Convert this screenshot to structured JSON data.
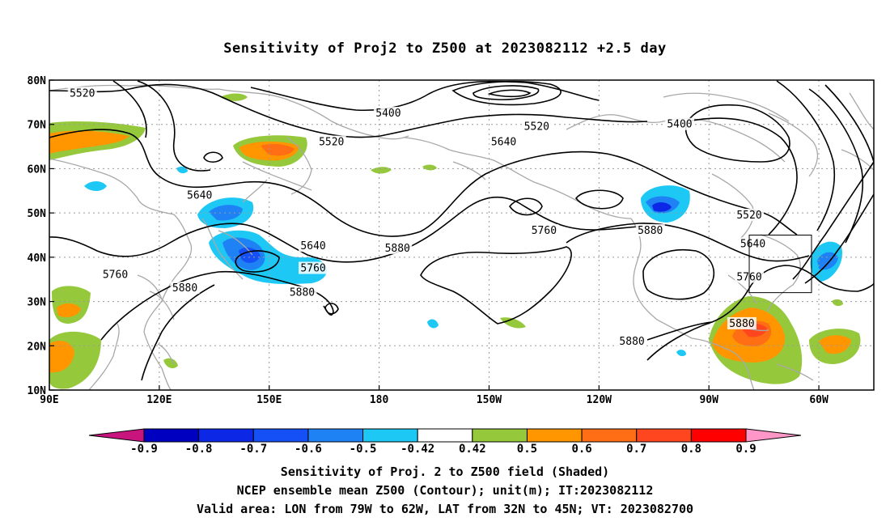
{
  "title": "Sensitivity of Proj2 to Z500 at 2023082112 +2.5 day",
  "lat_labels": [
    "80N",
    "70N",
    "60N",
    "50N",
    "40N",
    "30N",
    "20N",
    "10N"
  ],
  "lon_labels": [
    "90E",
    "120E",
    "150E",
    "180",
    "150W",
    "120W",
    "90W",
    "60W"
  ],
  "contour_labels": [
    {
      "text": "5520",
      "lon": 99,
      "lat": 77
    },
    {
      "text": "5400",
      "lon": 182.5,
      "lat": 72.5
    },
    {
      "text": "5520",
      "lon": 167,
      "lat": 66
    },
    {
      "text": "5520",
      "lon": 223,
      "lat": 69.5
    },
    {
      "text": "5640",
      "lon": 214,
      "lat": 66
    },
    {
      "text": "5400",
      "lon": 262,
      "lat": 70
    },
    {
      "text": "5640",
      "lon": 131,
      "lat": 54
    },
    {
      "text": "5520",
      "lon": 281,
      "lat": 49.5
    },
    {
      "text": "5640",
      "lon": 282,
      "lat": 43
    },
    {
      "text": "5640",
      "lon": 162,
      "lat": 42.5
    },
    {
      "text": "5760",
      "lon": 162,
      "lat": 37.5
    },
    {
      "text": "5760",
      "lon": 108,
      "lat": 36
    },
    {
      "text": "5880",
      "lon": 185,
      "lat": 42
    },
    {
      "text": "5760",
      "lon": 225,
      "lat": 46
    },
    {
      "text": "5880",
      "lon": 254,
      "lat": 46
    },
    {
      "text": "5760",
      "lon": 281,
      "lat": 35.5
    },
    {
      "text": "5880",
      "lon": 127,
      "lat": 33
    },
    {
      "text": "5880",
      "lon": 159,
      "lat": 32
    },
    {
      "text": "5880",
      "lon": 279,
      "lat": 25
    },
    {
      "text": "5880",
      "lon": 249,
      "lat": 21
    }
  ],
  "valid_box": {
    "lon_min": 281,
    "lon_max": 298,
    "lat_min": 32,
    "lat_max": 45
  },
  "colorbar": {
    "labels": [
      "-0.9",
      "-0.8",
      "-0.7",
      "-0.6",
      "-0.5",
      "-0.42",
      "0.42",
      "0.5",
      "0.6",
      "0.7",
      "0.8",
      "0.9"
    ],
    "colors": [
      "#0000c0",
      "#0c28e6",
      "#1450f5",
      "#1e82f5",
      "#1ec8f5",
      "#ffffff",
      "#96c83c",
      "#ff9600",
      "#ff6e14",
      "#ff461e",
      "#ff0000"
    ],
    "low_color": "#c8147d",
    "high_color": "#ff96c8"
  },
  "captions": {
    "line1": "Sensitivity of Proj. 2 to Z500 field (Shaded)",
    "line2": "NCEP ensemble mean Z500 (Contour); unit(m); IT:2023082112",
    "line3": "Valid area: LON from 79W to 62W, LAT from 32N to 45N; VT: 2023082700"
  },
  "colors": {
    "contour": "#000000",
    "coast": "#a8a8a8",
    "grid": "#9a9a9a"
  }
}
